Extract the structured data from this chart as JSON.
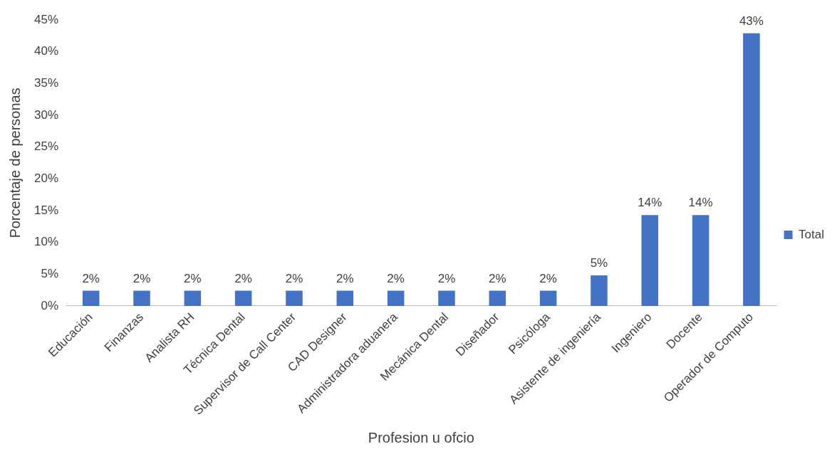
{
  "chart_data": {
    "type": "bar",
    "xlabel": "Profesion u ofcio",
    "ylabel": "Porcentaje de personas",
    "categories": [
      "Educación",
      "Finanzas",
      "Analista RH",
      "Técnica Dental",
      "Supervisor de Call Center",
      "CAD Designer",
      "Administradora aduanera",
      "Mecánica Dental",
      "Diseñador",
      "Psicóloga",
      "Asistente de ingeniería",
      "Ingeniero",
      "Docente",
      "Operador de Computo"
    ],
    "series": [
      {
        "name": "Total",
        "color": "#4472c4",
        "values": [
          2.4,
          2.4,
          2.4,
          2.4,
          2.4,
          2.4,
          2.4,
          2.4,
          2.4,
          2.4,
          4.8,
          14.3,
          14.3,
          42.9
        ],
        "value_labels": [
          "2%",
          "2%",
          "2%",
          "2%",
          "2%",
          "2%",
          "2%",
          "2%",
          "2%",
          "2%",
          "5%",
          "14%",
          "14%",
          "43%"
        ]
      }
    ],
    "ylim": [
      0,
      45
    ],
    "yticks": [
      {
        "value": 0,
        "label": "0%"
      },
      {
        "value": 5,
        "label": "5%"
      },
      {
        "value": 10,
        "label": "10%"
      },
      {
        "value": 15,
        "label": "15%"
      },
      {
        "value": 20,
        "label": "20%"
      },
      {
        "value": 25,
        "label": "25%"
      },
      {
        "value": 30,
        "label": "30%"
      },
      {
        "value": 35,
        "label": "35%"
      },
      {
        "value": 40,
        "label": "40%"
      },
      {
        "value": 45,
        "label": "45%"
      }
    ],
    "grid": false,
    "legend": "right"
  }
}
